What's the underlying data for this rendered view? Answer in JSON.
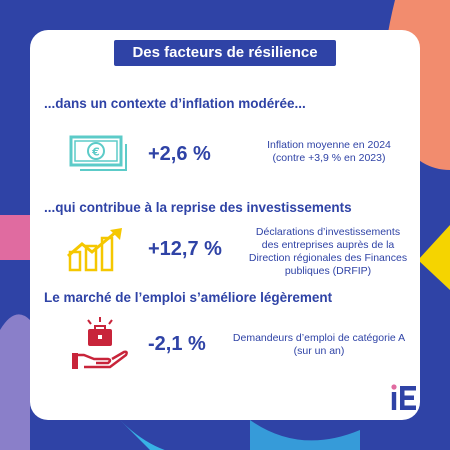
{
  "title": "Des facteurs de résilience",
  "sections": [
    {
      "heading": "...dans un contexte d’inflation modérée...",
      "icon": "euro-banknote-icon",
      "value": "+2,6 %",
      "desc_lines": [
        "Inflation moyenne en 2024",
        "(contre +3,9 % en 2023)"
      ]
    },
    {
      "heading": "...qui contribue à la reprise des investissements",
      "icon": "rising-bar-chart-icon",
      "value": "+12,7 %",
      "desc_lines": [
        "Déclarations d’investissements",
        "des entreprises auprès de la",
        "Direction régionales des Finances",
        "publiques (DRFIP)"
      ]
    },
    {
      "heading": "Le marché de l’emploi s’améliore légèrement",
      "icon": "briefcase-hand-icon",
      "value": "-2,1 %",
      "desc_lines": [
        "Demandeurs d’emploi de catégorie A",
        "(sur un an)"
      ]
    }
  ],
  "logo_text": "iE",
  "colors": {
    "primary": "#2f43a6",
    "icon_teal": "#5ccbc8",
    "icon_yellow": "#f5c700",
    "icon_red": "#c8243a",
    "bg_coral": "#f28c6e",
    "bg_pink": "#e06ba0",
    "bg_sky": "#38b2e6",
    "bg_yellow": "#f5d400",
    "bg_purple": "#8a7fc9"
  }
}
